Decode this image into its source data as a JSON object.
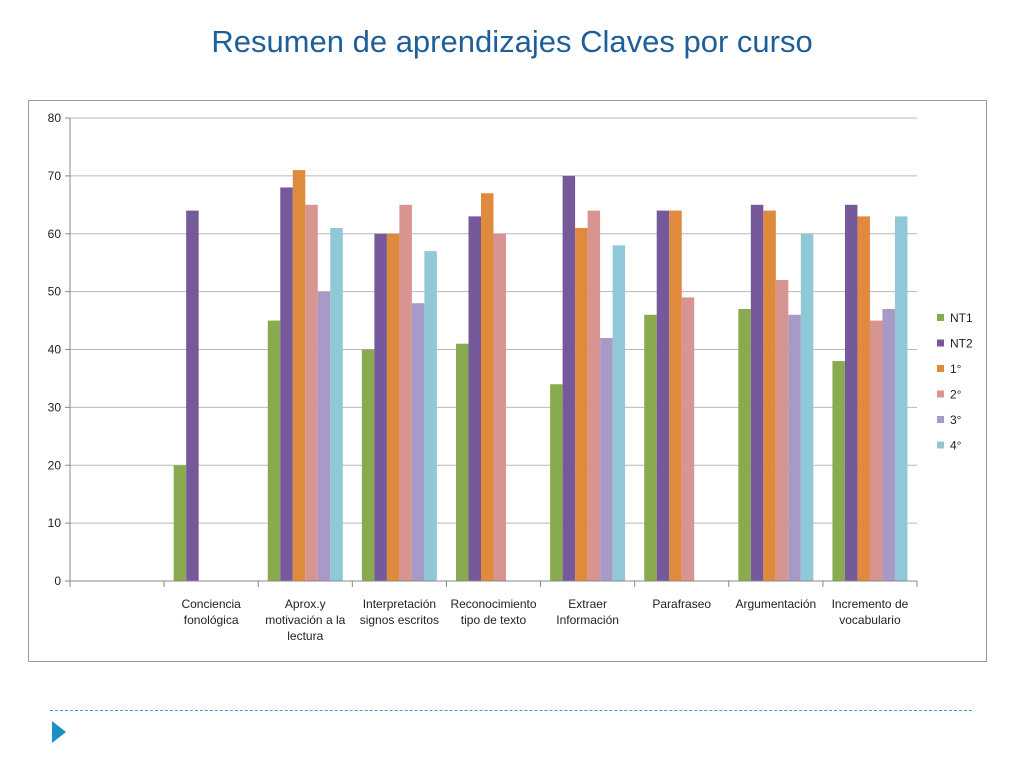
{
  "slide": {
    "title": "Resumen de aprendizajes Claves por curso"
  },
  "chart_data": {
    "type": "bar",
    "title": "",
    "xlabel": "",
    "ylabel": "",
    "ylim": [
      0,
      80
    ],
    "yticks": [
      0,
      10,
      20,
      30,
      40,
      50,
      60,
      70,
      80
    ],
    "grid": true,
    "legend_position": "right",
    "categories": [
      "",
      "Conciencia fonológica",
      "Aprox.y motivación a la lectura",
      "Interpretación signos escritos",
      "Reconocimiento tipo de texto",
      "Extraer Información",
      "Parafraseo",
      "Argumentación",
      "Incremento de vocabulario"
    ],
    "category_lines": [
      [
        ""
      ],
      [
        "Conciencia",
        "fonológica"
      ],
      [
        "Aprox.y",
        "motivación a la",
        "lectura"
      ],
      [
        "Interpretación",
        "signos escritos"
      ],
      [
        "Reconocimiento",
        "tipo de texto"
      ],
      [
        "Extraer",
        "Información"
      ],
      [
        "Parafraseo"
      ],
      [
        "Argumentación"
      ],
      [
        "Incremento de",
        "vocabulario"
      ]
    ],
    "series": [
      {
        "name": "NT1",
        "color": "#8aaa50",
        "values": [
          null,
          20,
          45,
          40,
          41,
          34,
          46,
          47,
          38
        ]
      },
      {
        "name": "NT2",
        "color": "#76599a",
        "values": [
          null,
          64,
          68,
          60,
          63,
          70,
          64,
          65,
          65
        ]
      },
      {
        "name": "1°",
        "color": "#e08a3e",
        "values": [
          null,
          null,
          71,
          60,
          67,
          61,
          64,
          64,
          63
        ]
      },
      {
        "name": "2°",
        "color": "#d79490",
        "values": [
          null,
          null,
          65,
          65,
          60,
          64,
          49,
          52,
          45
        ]
      },
      {
        "name": "3°",
        "color": "#a89ac6",
        "values": [
          null,
          null,
          50,
          48,
          null,
          42,
          null,
          46,
          47
        ]
      },
      {
        "name": "4°",
        "color": "#90c8d8",
        "values": [
          null,
          null,
          61,
          57,
          null,
          58,
          null,
          60,
          63
        ]
      }
    ]
  }
}
